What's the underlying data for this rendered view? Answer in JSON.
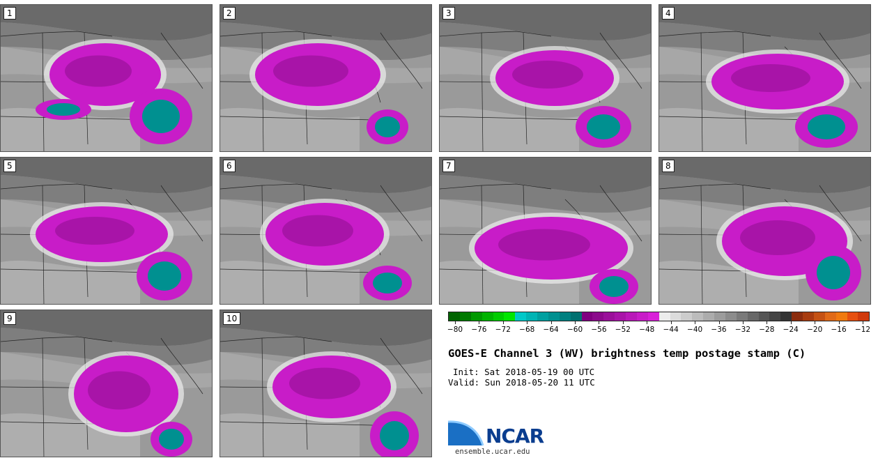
{
  "panels": [
    {
      "label": "1"
    },
    {
      "label": "2"
    },
    {
      "label": "3"
    },
    {
      "label": "4"
    },
    {
      "label": "5"
    },
    {
      "label": "6"
    },
    {
      "label": "7"
    },
    {
      "label": "8"
    },
    {
      "label": "9"
    },
    {
      "label": "10"
    }
  ],
  "colorbar": {
    "colors": [
      "#006400",
      "#007a00",
      "#009900",
      "#00b300",
      "#00cc00",
      "#00e600",
      "#00c8c8",
      "#00b4b4",
      "#00a0a0",
      "#009090",
      "#008080",
      "#007070",
      "#800080",
      "#8c0a8c",
      "#9a109a",
      "#a814a8",
      "#b818b8",
      "#c81cc8",
      "#d820d8",
      "#ececec",
      "#dcdcdc",
      "#cccccc",
      "#bcbcbc",
      "#acacac",
      "#9c9c9c",
      "#8c8c8c",
      "#7a7a7a",
      "#686868",
      "#565656",
      "#444444",
      "#333333",
      "#8b2d0f",
      "#a83c10",
      "#c55214",
      "#e06a18",
      "#f07a10",
      "#e65010",
      "#d03a0c"
    ],
    "ticks": [
      "−80",
      "−76",
      "−72",
      "−68",
      "−64",
      "−60",
      "−56",
      "−52",
      "−48",
      "−44",
      "−40",
      "−36",
      "−32",
      "−28",
      "−24",
      "−20",
      "−16",
      "−12"
    ]
  },
  "title": "GOES-E Channel 3 (WV) brightness temp postage stamp (C)",
  "init": "Init: Sat 2018-05-19 00 UTC",
  "valid": "Valid: Sun 2018-05-20 11 UTC",
  "logo": {
    "name": "NCAR",
    "url": "ensemble.ucar.edu"
  }
}
